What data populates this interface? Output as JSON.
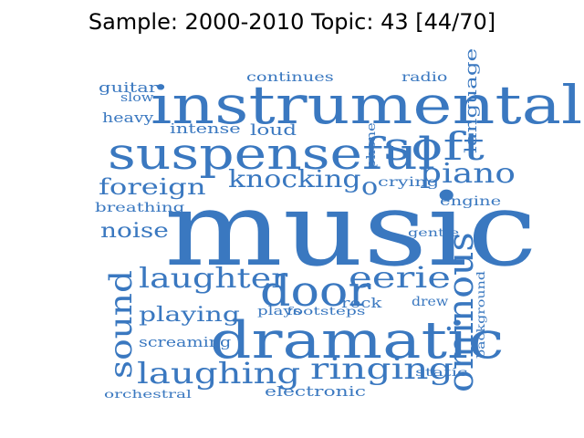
{
  "title": "Sample: 2000-2010 Topic: 43 [44/70]",
  "word_color": "#3a78c0",
  "words": [
    {
      "text": "music"
    },
    {
      "text": "instrumental"
    },
    {
      "text": "suspenseful"
    },
    {
      "text": "dramatic"
    },
    {
      "text": "ominous"
    },
    {
      "text": "sound"
    },
    {
      "text": "door"
    },
    {
      "text": "soft"
    },
    {
      "text": "piano"
    },
    {
      "text": "eerie"
    },
    {
      "text": "laughter"
    },
    {
      "text": "laughing"
    },
    {
      "text": "ringing"
    },
    {
      "text": "knocking"
    },
    {
      "text": "foreign"
    },
    {
      "text": "noise"
    },
    {
      "text": "playing"
    },
    {
      "text": "screaming"
    },
    {
      "text": "language"
    },
    {
      "text": "guitar"
    },
    {
      "text": "slow"
    },
    {
      "text": "heavy"
    },
    {
      "text": "intense"
    },
    {
      "text": "loud"
    },
    {
      "text": "continues"
    },
    {
      "text": "radio"
    },
    {
      "text": "phone"
    },
    {
      "text": "crying"
    },
    {
      "text": "engine"
    },
    {
      "text": "breathing"
    },
    {
      "text": "gentle"
    },
    {
      "text": "rock"
    },
    {
      "text": "drew"
    },
    {
      "text": "plays"
    },
    {
      "text": "footsteps"
    },
    {
      "text": "background"
    },
    {
      "text": "static"
    },
    {
      "text": "orchestral"
    },
    {
      "text": "electronic"
    },
    {
      "text": "o"
    }
  ]
}
